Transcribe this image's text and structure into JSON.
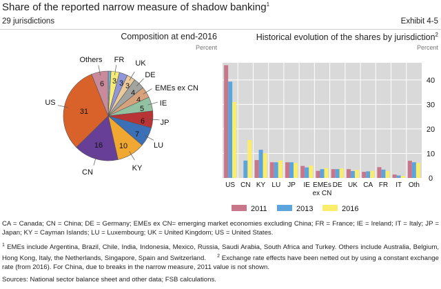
{
  "header": {
    "title": "Share of the reported narrow measure of shadow banking",
    "title_sup": "1",
    "subtitle": "29 jurisdictions",
    "exhibit": "Exhibit 4-5"
  },
  "chart_data": [
    {
      "type": "pie",
      "title": "Composition at end-2016",
      "unit": "Percent",
      "start": "top, clockwise",
      "slices": [
        {
          "name": "",
          "value": 1,
          "show_value": false,
          "color": "#6baed6"
        },
        {
          "name": "FR",
          "value": 3,
          "show_value": true,
          "color": "#f6eb78"
        },
        {
          "name": "",
          "value": 3,
          "show_value": true,
          "color": "#8f97d9"
        },
        {
          "name": "UK",
          "value": 3,
          "show_value": true,
          "color": "#ebc99b"
        },
        {
          "name": "DE",
          "value": 4,
          "show_value": true,
          "color": "#a2a59f"
        },
        {
          "name": "EMEs ex CN",
          "value": 4,
          "show_value": true,
          "color": "#d6a27c"
        },
        {
          "name": "IE",
          "value": 5,
          "show_value": true,
          "color": "#93c2a2"
        },
        {
          "name": "JP",
          "value": 6,
          "show_value": true,
          "color": "#b93434"
        },
        {
          "name": "LU",
          "value": 7,
          "show_value": true,
          "color": "#3c70b6"
        },
        {
          "name": "KY",
          "value": 10,
          "show_value": true,
          "color": "#f0a832"
        },
        {
          "name": "CN",
          "value": 16,
          "show_value": true,
          "color": "#673f97"
        },
        {
          "name": "US",
          "value": 31,
          "show_value": true,
          "color": "#d9622b"
        },
        {
          "name": "Others",
          "value": 6,
          "show_value": true,
          "color": "#c98b9b"
        }
      ]
    },
    {
      "type": "bar",
      "title": "Historical evolution of the shares by jurisdiction",
      "title_sup": "2",
      "unit": "Percent",
      "categories": [
        "US",
        "CN",
        "KY",
        "LU",
        "JP",
        "IE",
        "EMEs\nex CN",
        "DE",
        "UK",
        "CA",
        "FR",
        "IT",
        "Oth"
      ],
      "series": [
        {
          "name": "2011",
          "color": "#c8778b",
          "values": [
            46,
            null,
            7.3,
            6.4,
            6.4,
            4.9,
            2.9,
            3.6,
            3.6,
            2.5,
            4.4,
            1.4,
            7.0
          ]
        },
        {
          "name": "2013",
          "color": "#5ba4dc",
          "values": [
            39.3,
            7.1,
            11.5,
            6.4,
            6.4,
            4.3,
            3.6,
            3.6,
            2.8,
            2.7,
            3.4,
            1.0,
            6.4
          ]
        },
        {
          "name": "2016",
          "color": "#f9ed6b",
          "values": [
            31,
            15.5,
            10.1,
            7.1,
            6.1,
            5.0,
            4.0,
            3.9,
            3.3,
            2.9,
            2.8,
            0.8,
            6.1
          ]
        }
      ],
      "yticks": [
        0,
        10,
        20,
        30,
        40
      ],
      "ylim": [
        0,
        47
      ],
      "y_axis_side": "right",
      "grid": true,
      "legend": "bottom"
    }
  ],
  "notes": {
    "abbrev": "CA = Canada; CN = China; DE = Germany; EMEs ex CN= emerging market economies excluding China; FR = France; IE = Ireland; IT = Italy; JP = Japan; KY = Cayman Islands; LU = Luxembourg; UK = United Kingdom; US = United States.",
    "fn1_mark": "1",
    "fn1": "EMEs include Argentina, Brazil, Chile, India, Indonesia, Mexico, Russia, Saudi Arabia, South Africa and Turkey. Others include Australia, Belgium, Hong Kong, Italy, the Netherlands, Singapore, Spain and Switzerland.",
    "fn2_mark": "2",
    "fn2": "Exchange rate effects have been netted out by using a constant exchange rate (from 2016). For China, due to breaks in the narrow measure, 2011 value is not shown.",
    "sources": "Sources: National sector balance sheet and other data; FSB calculations."
  }
}
